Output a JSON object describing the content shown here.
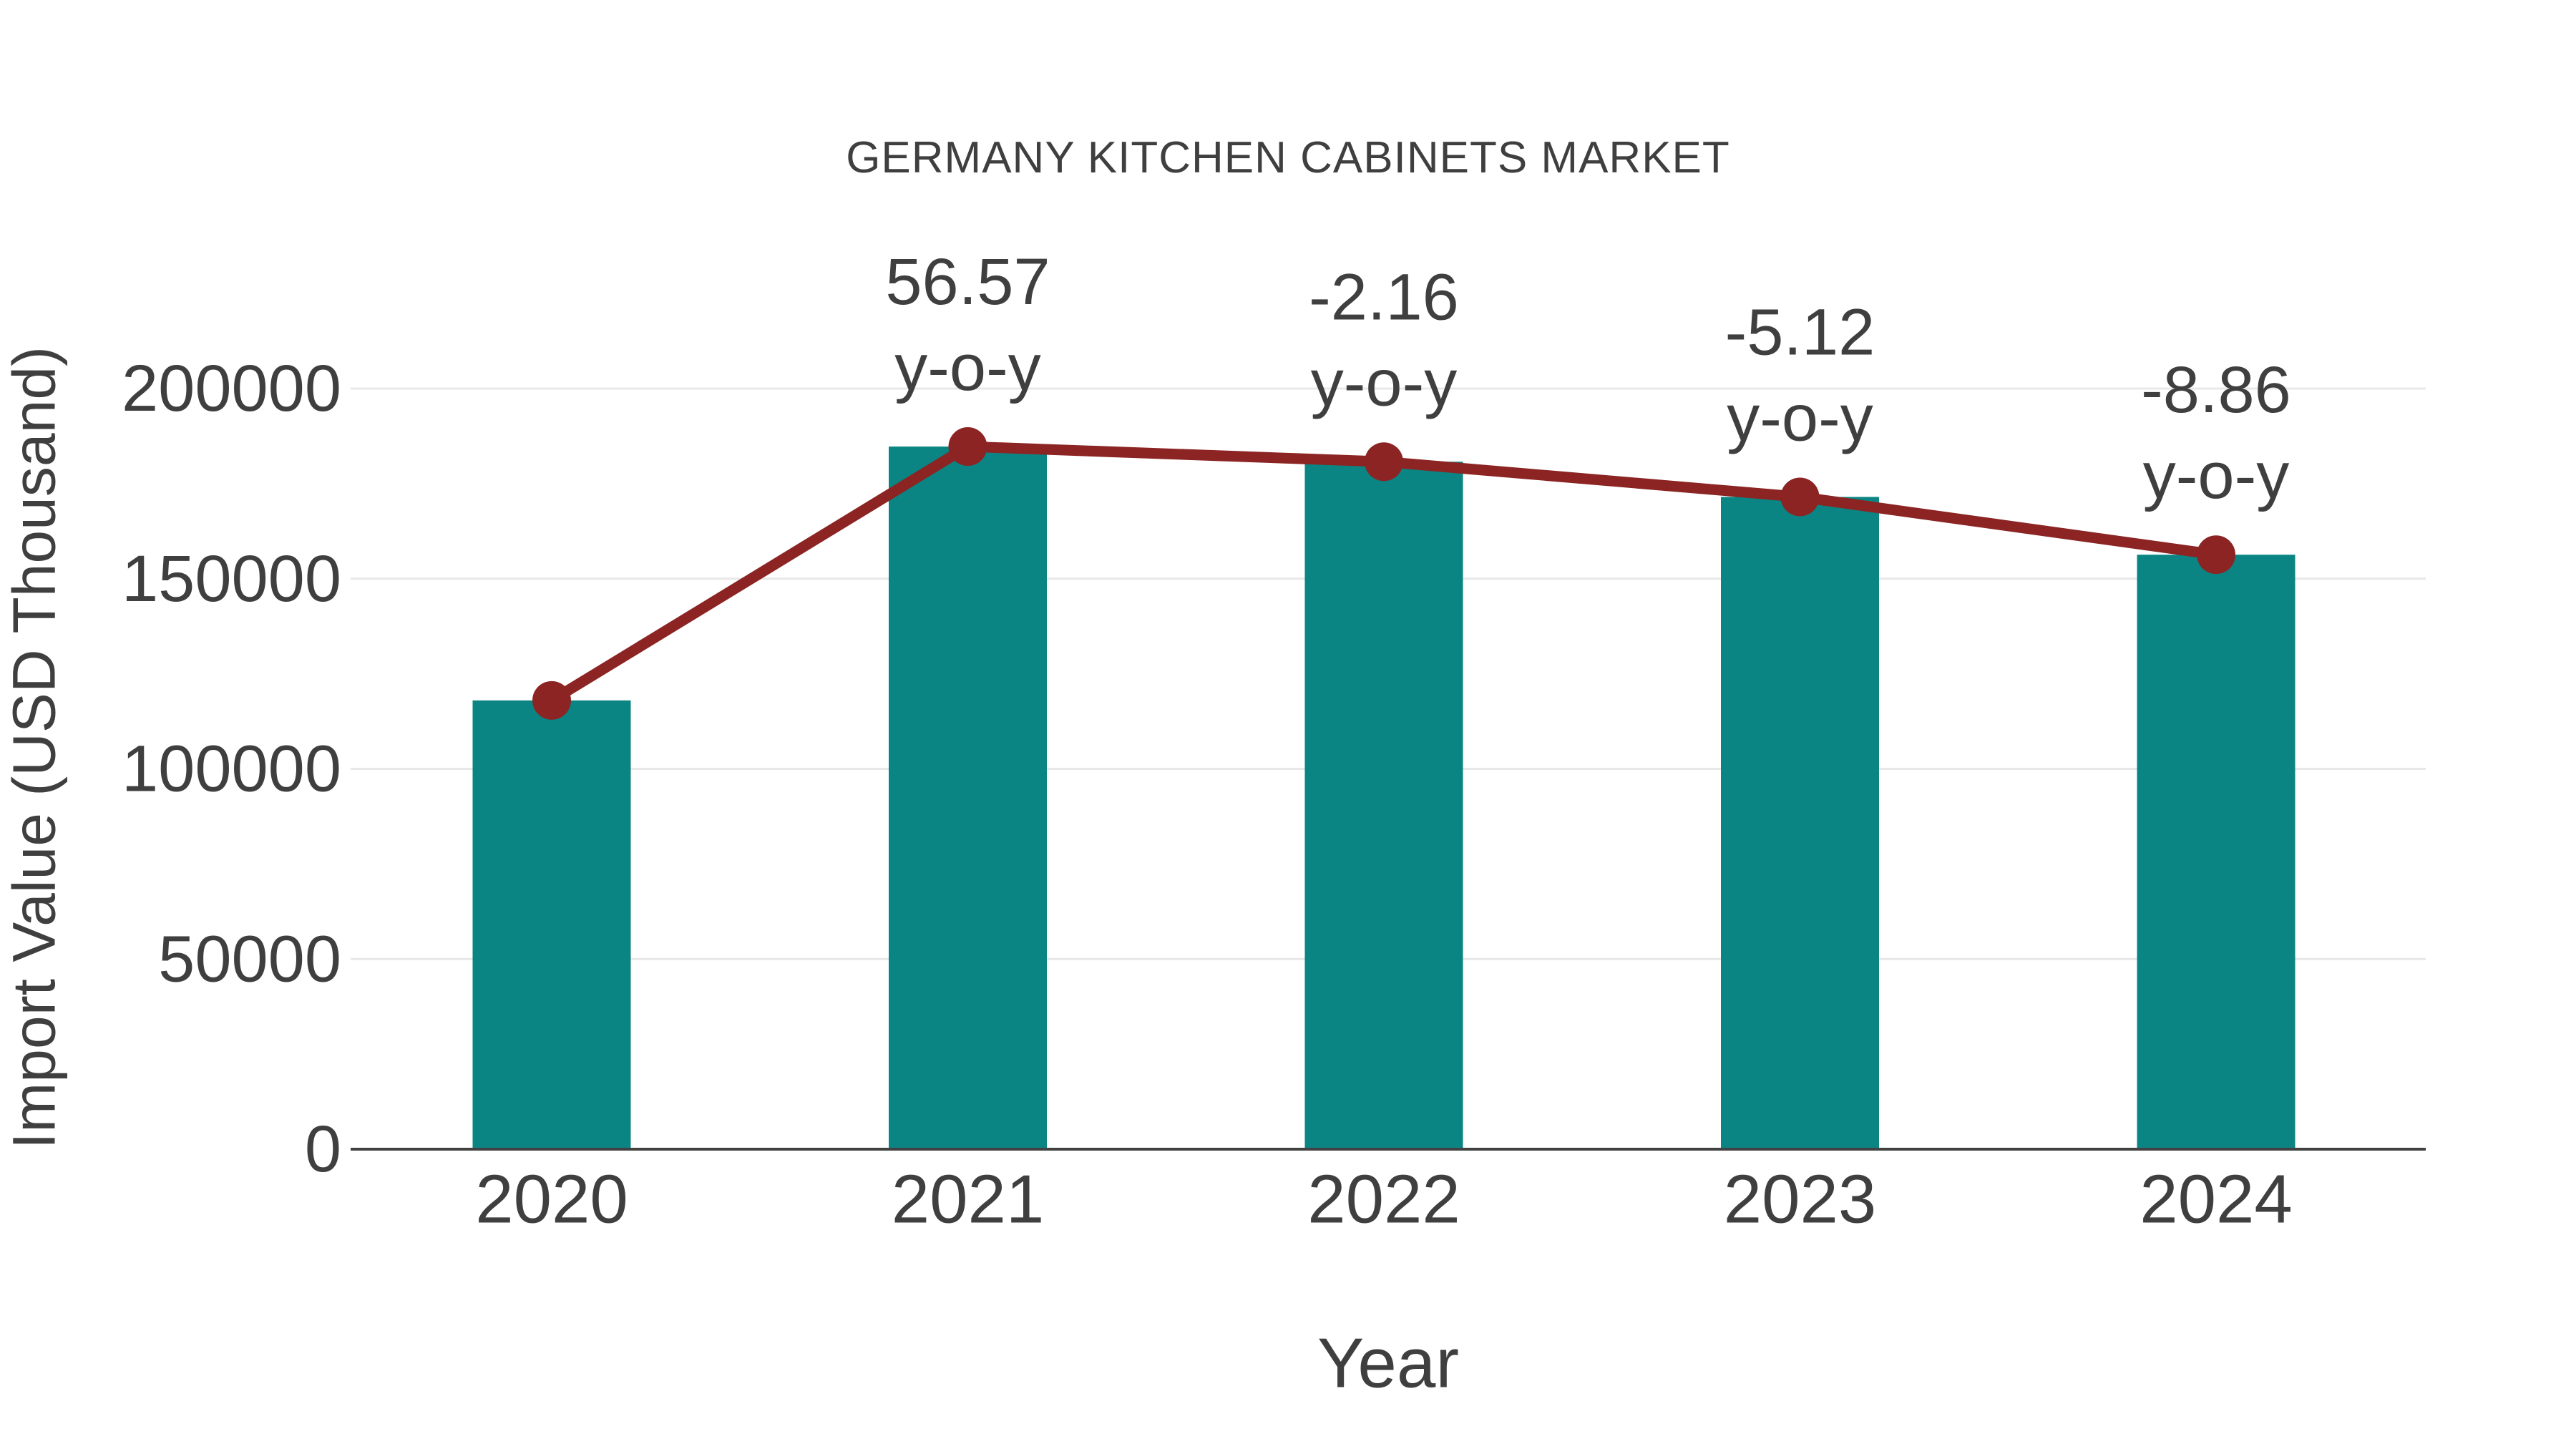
{
  "page": {
    "background": "#ffffff"
  },
  "chart_data": {
    "type": "bar",
    "subtype": "bar-with-trend-line",
    "title": "GERMANY KITCHEN CABINETS MARKET",
    "xlabel": "Year",
    "ylabel": "Import Value (USD Thousand)",
    "categories": [
      "2020",
      "2021",
      "2022",
      "2023",
      "2024"
    ],
    "series": [
      {
        "name": "Import Value bars",
        "type": "bar",
        "values": [
          118000,
          184750,
          180760,
          171500,
          156310
        ]
      },
      {
        "name": "Import Value trend",
        "type": "line",
        "markers": true,
        "values": [
          118000,
          184750,
          180760,
          171500,
          156310
        ]
      }
    ],
    "yoy_percent": [
      null,
      56.57,
      -2.16,
      -5.12,
      -8.86
    ],
    "annotations": [
      {
        "category": "2021",
        "text_lines": [
          "56.57",
          "y-o-y"
        ]
      },
      {
        "category": "2022",
        "text_lines": [
          "-2.16",
          "y-o-y"
        ]
      },
      {
        "category": "2023",
        "text_lines": [
          "-5.12",
          "y-o-y"
        ]
      },
      {
        "category": "2024",
        "text_lines": [
          "-8.86",
          "y-o-y"
        ]
      }
    ],
    "yticks": [
      0,
      50000,
      100000,
      150000,
      200000
    ],
    "ylim": [
      0,
      210000
    ],
    "grid": true,
    "legend": false,
    "colors": {
      "bar": "#0b8583",
      "line": "#8b2423",
      "marker": "#8b2423",
      "grid": "#e8e8e8",
      "axis_line": "#424242",
      "text": "#3f3f3f"
    }
  }
}
